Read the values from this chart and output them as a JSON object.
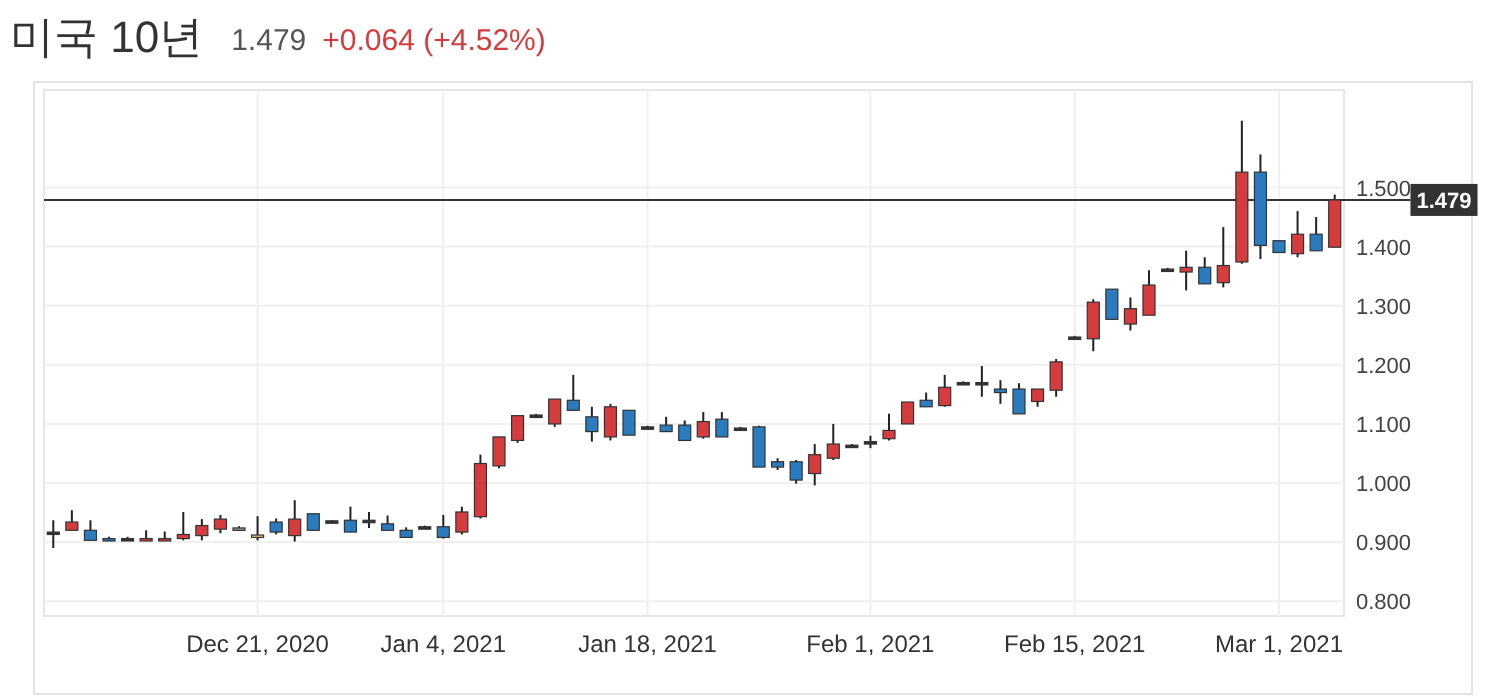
{
  "chart_data": {
    "type": "candlestick",
    "title": "미국 10년",
    "subtitle": "1.479",
    "annotations": [
      "+0.064 (+4.52%)"
    ],
    "categories": [
      null,
      null,
      null,
      null,
      null,
      null,
      null,
      null,
      null,
      null,
      null,
      "Dec 21, 2020",
      null,
      null,
      null,
      null,
      null,
      null,
      null,
      null,
      null,
      "Jan 4, 2021",
      null,
      null,
      null,
      null,
      null,
      null,
      null,
      null,
      null,
      null,
      "Jan 18, 2021",
      null,
      null,
      null,
      null,
      null,
      null,
      null,
      null,
      null,
      null,
      null,
      "Feb 1, 2021",
      null,
      null,
      null,
      null,
      null,
      null,
      null,
      null,
      null,
      null,
      "Feb 15, 2021",
      null,
      null,
      null,
      null,
      null,
      null,
      null,
      null,
      null,
      null,
      "Mar 1, 2021",
      null,
      null,
      null
    ],
    "ohlc": [
      [
        0.917,
        0.937,
        0.89,
        0.917
      ],
      [
        0.92,
        0.954,
        0.92,
        0.934
      ],
      [
        0.92,
        0.937,
        0.903,
        0.903
      ],
      [
        0.906,
        0.909,
        0.903,
        0.903
      ],
      [
        0.906,
        0.909,
        0.903,
        0.906
      ],
      [
        0.903,
        0.92,
        0.903,
        0.906
      ],
      [
        0.903,
        0.918,
        0.903,
        0.906
      ],
      [
        0.906,
        0.951,
        0.903,
        0.913
      ],
      [
        0.911,
        0.939,
        0.903,
        0.928
      ],
      [
        0.922,
        0.946,
        0.915,
        0.939
      ],
      [
        0.924,
        0.927,
        0.92,
        0.924
      ],
      [
        0.91,
        0.944,
        0.903,
        0.912
      ],
      [
        0.934,
        0.94,
        0.913,
        0.917
      ],
      [
        0.911,
        0.971,
        0.901,
        0.939
      ],
      [
        0.948,
        0.948,
        0.92,
        0.92
      ],
      [
        0.936,
        0.937,
        0.934,
        0.936
      ],
      [
        0.937,
        0.96,
        0.917,
        0.917
      ],
      [
        0.937,
        0.951,
        0.924,
        0.937
      ],
      [
        0.931,
        0.945,
        0.92,
        0.92
      ],
      [
        0.92,
        0.925,
        0.908,
        0.908
      ],
      [
        0.926,
        0.928,
        0.924,
        0.926
      ],
      [
        0.926,
        0.946,
        0.906,
        0.908
      ],
      [
        0.917,
        0.96,
        0.913,
        0.951
      ],
      [
        0.943,
        1.048,
        0.94,
        1.033
      ],
      [
        1.029,
        1.078,
        1.025,
        1.078
      ],
      [
        1.072,
        1.114,
        1.068,
        1.114
      ],
      [
        1.115,
        1.117,
        1.113,
        1.115
      ],
      [
        1.1,
        1.142,
        1.095,
        1.142
      ],
      [
        1.14,
        1.183,
        1.123,
        1.123
      ],
      [
        1.112,
        1.129,
        1.07,
        1.087
      ],
      [
        1.078,
        1.134,
        1.072,
        1.129
      ],
      [
        1.123,
        1.123,
        1.081,
        1.081
      ],
      [
        1.095,
        1.097,
        1.093,
        1.095
      ],
      [
        1.098,
        1.112,
        1.087,
        1.087
      ],
      [
        1.098,
        1.106,
        1.072,
        1.072
      ],
      [
        1.078,
        1.12,
        1.075,
        1.104
      ],
      [
        1.108,
        1.12,
        1.078,
        1.078
      ],
      [
        1.093,
        1.095,
        1.091,
        1.093
      ],
      [
        1.095,
        1.097,
        1.027,
        1.027
      ],
      [
        1.036,
        1.042,
        1.022,
        1.027
      ],
      [
        1.036,
        1.039,
        0.999,
        1.005
      ],
      [
        1.016,
        1.066,
        0.996,
        1.048
      ],
      [
        1.042,
        1.1,
        1.039,
        1.066
      ],
      [
        1.064,
        1.066,
        1.062,
        1.064
      ],
      [
        1.07,
        1.08,
        1.059,
        1.07
      ],
      [
        1.075,
        1.117,
        1.072,
        1.089
      ],
      [
        1.1,
        1.137,
        1.1,
        1.137
      ],
      [
        1.14,
        1.153,
        1.129,
        1.129
      ],
      [
        1.131,
        1.183,
        1.129,
        1.162
      ],
      [
        1.17,
        1.172,
        1.168,
        1.17
      ],
      [
        1.17,
        1.198,
        1.146,
        1.17
      ],
      [
        1.159,
        1.174,
        1.134,
        1.153
      ],
      [
        1.159,
        1.169,
        1.117,
        1.117
      ],
      [
        1.138,
        1.159,
        1.129,
        1.159
      ],
      [
        1.157,
        1.21,
        1.146,
        1.205
      ],
      [
        1.247,
        1.249,
        1.245,
        1.247
      ],
      [
        1.244,
        1.311,
        1.223,
        1.306
      ],
      [
        1.328,
        1.328,
        1.277,
        1.277
      ],
      [
        1.269,
        1.314,
        1.258,
        1.295
      ],
      [
        1.284,
        1.36,
        1.284,
        1.335
      ],
      [
        1.362,
        1.364,
        1.36,
        1.362
      ],
      [
        1.357,
        1.393,
        1.326,
        1.365
      ],
      [
        1.365,
        1.382,
        1.337,
        1.337
      ],
      [
        1.339,
        1.433,
        1.331,
        1.368
      ],
      [
        1.374,
        1.613,
        1.371,
        1.526
      ],
      [
        1.526,
        1.556,
        1.379,
        1.402
      ],
      [
        1.41,
        1.41,
        1.39,
        1.39
      ],
      [
        1.388,
        1.46,
        1.382,
        1.421
      ],
      [
        1.421,
        1.45,
        1.393,
        1.393
      ],
      [
        1.399,
        1.488,
        1.399,
        1.479
      ]
    ],
    "colors": [
      "#333333",
      "#d63b3d",
      "#2b7bbf",
      "#2b7bbf",
      "#333333",
      "#d63b3d",
      "#d63b3d",
      "#d63b3d",
      "#d63b3d",
      "#d63b3d",
      "#999999",
      "#e8c27a",
      "#2b7bbf",
      "#d63b3d",
      "#2b7bbf",
      "#333333",
      "#2b7bbf",
      "#333333",
      "#2b7bbf",
      "#2b7bbf",
      "#333333",
      "#2b7bbf",
      "#d63b3d",
      "#d63b3d",
      "#d63b3d",
      "#d63b3d",
      "#333333",
      "#d63b3d",
      "#2b7bbf",
      "#2b7bbf",
      "#d63b3d",
      "#2b7bbf",
      "#333333",
      "#2b7bbf",
      "#2b7bbf",
      "#d63b3d",
      "#2b7bbf",
      "#333333",
      "#2b7bbf",
      "#2b7bbf",
      "#2b7bbf",
      "#d63b3d",
      "#d63b3d",
      "#333333",
      "#333333",
      "#d63b3d",
      "#d63b3d",
      "#2b7bbf",
      "#d63b3d",
      "#333333",
      "#333333",
      "#2b7bbf",
      "#2b7bbf",
      "#d63b3d",
      "#d63b3d",
      "#333333",
      "#d63b3d",
      "#2b7bbf",
      "#d63b3d",
      "#d63b3d",
      "#333333",
      "#d63b3d",
      "#2b7bbf",
      "#d63b3d",
      "#d63b3d",
      "#2b7bbf",
      "#2b7bbf",
      "#d63b3d",
      "#2b7bbf",
      "#d63b3d"
    ],
    "ylim": [
      0.775,
      1.665
    ],
    "yticks": [
      {
        "value": 0.8,
        "label": "0.800"
      },
      {
        "value": 0.9,
        "label": "0.900"
      },
      {
        "value": 1.0,
        "label": "1.000"
      },
      {
        "value": 1.1,
        "label": "1.100"
      },
      {
        "value": 1.2,
        "label": "1.200"
      },
      {
        "value": 1.3,
        "label": "1.300"
      },
      {
        "value": 1.4,
        "label": "1.400"
      },
      {
        "value": 1.5,
        "label": "1.500"
      }
    ],
    "ref_lines": [
      {
        "axis": "y",
        "value": 1.479,
        "label": "1.479",
        "color": "#333333"
      }
    ],
    "grid": true
  }
}
